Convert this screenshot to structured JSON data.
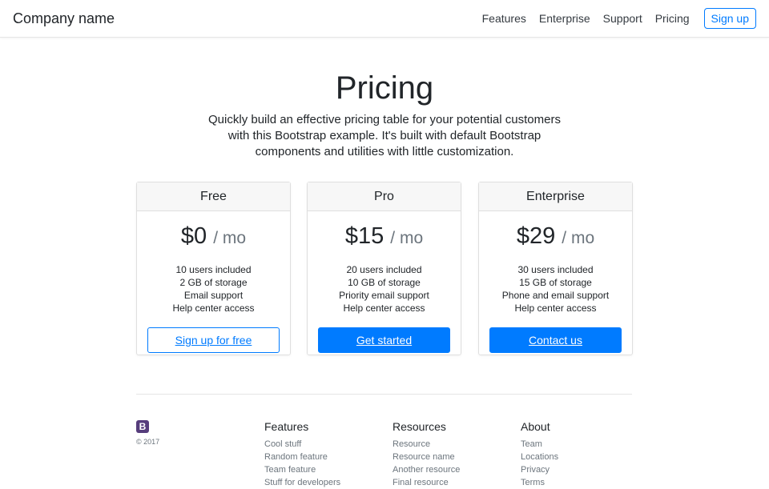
{
  "header": {
    "brand": "Company name",
    "nav": [
      "Features",
      "Enterprise",
      "Support",
      "Pricing"
    ],
    "signup": "Sign up"
  },
  "hero": {
    "title": "Pricing",
    "lead": "Quickly build an effective pricing table for your potential customers with this Bootstrap example. It's built with default Bootstrap components and utilities with little customization."
  },
  "plans": [
    {
      "name": "Free",
      "price": "$0",
      "period": "/ mo",
      "features": [
        "10 users included",
        "2 GB of storage",
        "Email support",
        "Help center access"
      ],
      "button": "Sign up for free",
      "style": "outline"
    },
    {
      "name": "Pro",
      "price": "$15",
      "period": "/ mo",
      "features": [
        "20 users included",
        "10 GB of storage",
        "Priority email support",
        "Help center access"
      ],
      "button": "Get started",
      "style": "solid"
    },
    {
      "name": "Enterprise",
      "price": "$29",
      "period": "/ mo",
      "features": [
        "30 users included",
        "15 GB of storage",
        "Phone and email support",
        "Help center access"
      ],
      "button": "Contact us",
      "style": "solid"
    }
  ],
  "footer": {
    "logo": "B",
    "copyright": "© 2017",
    "columns": [
      {
        "title": "Features",
        "links": [
          "Cool stuff",
          "Random feature",
          "Team feature",
          "Stuff for developers"
        ]
      },
      {
        "title": "Resources",
        "links": [
          "Resource",
          "Resource name",
          "Another resource",
          "Final resource"
        ]
      },
      {
        "title": "About",
        "links": [
          "Team",
          "Locations",
          "Privacy",
          "Terms"
        ]
      }
    ]
  },
  "colors": {
    "primary": "#007bff",
    "logo": "#563d7c"
  }
}
